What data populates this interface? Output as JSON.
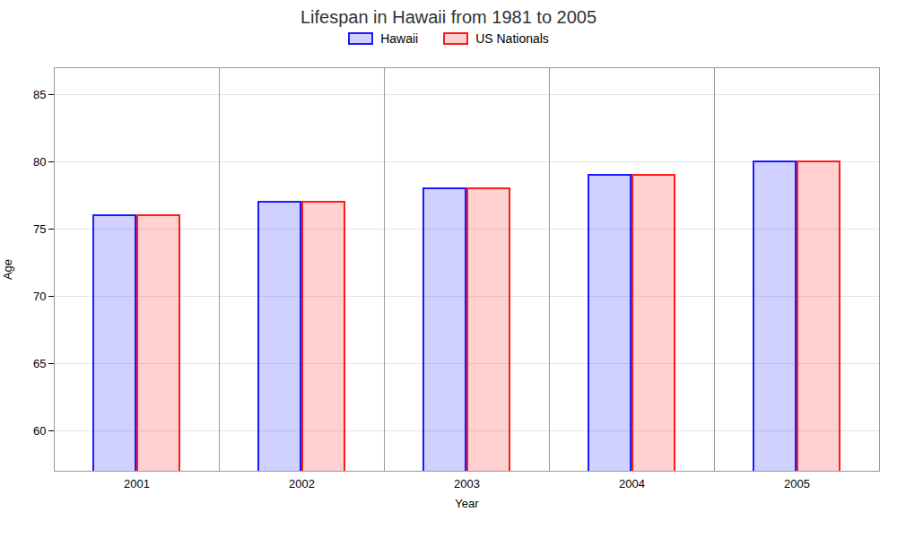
{
  "chart_data": {
    "type": "bar",
    "title": "Lifespan in Hawaii from 1981 to 2005",
    "xlabel": "Year",
    "ylabel": "Age",
    "categories": [
      "2001",
      "2002",
      "2003",
      "2004",
      "2005"
    ],
    "series": [
      {
        "name": "Hawaii",
        "color": "#1a1aff",
        "values": [
          76,
          77,
          78,
          79,
          80
        ]
      },
      {
        "name": "US Nationals",
        "color": "#ff1a1a",
        "values": [
          76,
          77,
          78,
          79,
          80
        ]
      }
    ],
    "ylim": [
      57,
      87
    ],
    "yticks": [
      60,
      65,
      70,
      75,
      80,
      85
    ],
    "grid": true,
    "legend": "upper center"
  }
}
